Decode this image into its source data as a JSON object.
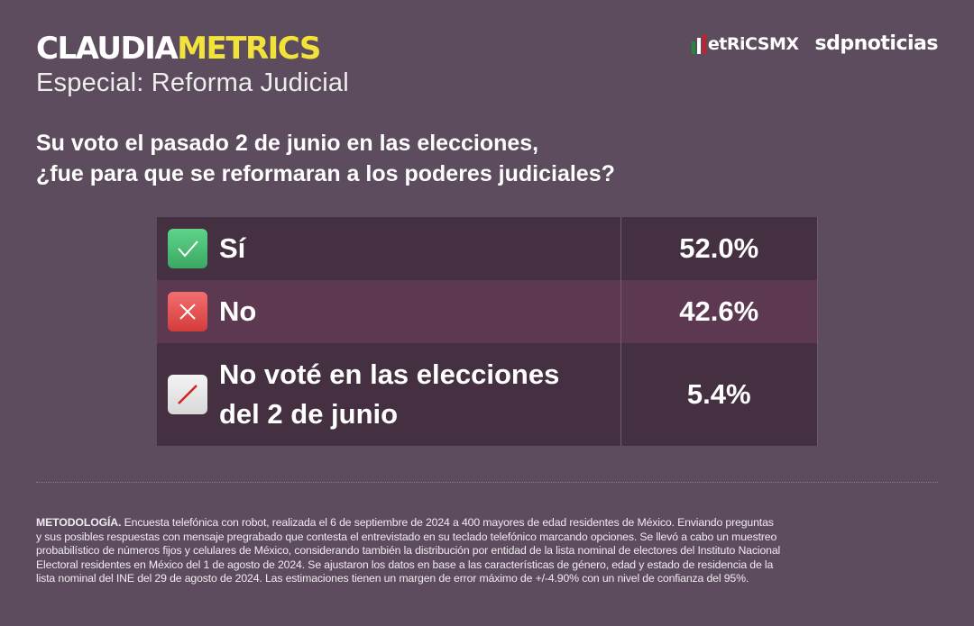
{
  "header": {
    "brand_part1": "CLAUDIA",
    "brand_part2": "METRICS",
    "subtitle": "Especial: Reforma Judicial",
    "logo_metrics": "etRiCSMX",
    "logo_sdp": "sdpnoticias"
  },
  "question": {
    "line1": "Su voto el pasado 2 de junio en las elecciones,",
    "line2": "¿fue para que se reformaran a los poderes judiciales?"
  },
  "results": [
    {
      "icon": "check-icon",
      "label": "Sí",
      "value": "52.0%"
    },
    {
      "icon": "x-icon",
      "label": "No",
      "value": "42.6%"
    },
    {
      "icon": "slash-icon",
      "label_line1": "No voté en las elecciones",
      "label_line2": "del 2 de junio",
      "value": "5.4%"
    }
  ],
  "methodology": {
    "title": "METODOLOGÍA.",
    "lines": [
      "Encuesta telefónica con robot, realizada el 6 de septiembre de 2024 a 400 mayores de edad residentes de México. Enviando preguntas",
      "y sus posibles respuestas con mensaje pregrabado que contesta el entrevistado en su teclado telefónico marcando opciones. Se llevó a cabo un muestreo",
      "probabilístico de números fijos y celulares de México, considerando también la distribución por entidad de la lista nominal de electores del Instituto Nacional",
      "Electoral residentes en México del 1 de agosto de 2024. Se ajustaron los datos en base a las características de género, edad y estado de residencia de la",
      "lista nominal del INE del 29 de agosto de 2024. Las estimaciones tienen un margen de error máximo de +/-4.90% con un nivel de confianza del 95%."
    ]
  },
  "colors": {
    "background": "#5d4c5d",
    "accent": "#f2e33a",
    "row": "#443040",
    "row_highlight": "#5d3851"
  }
}
